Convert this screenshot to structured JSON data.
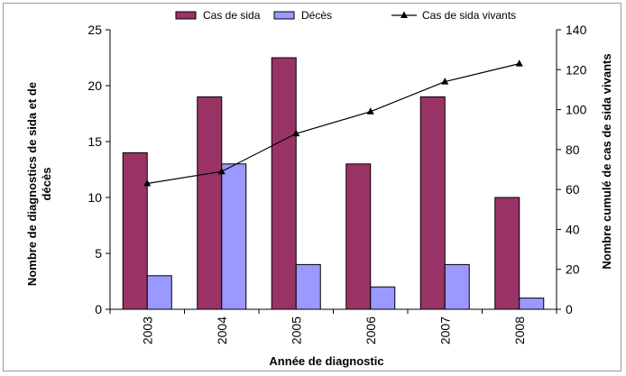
{
  "chart_data": {
    "type": "bar",
    "categories": [
      "2003",
      "2004",
      "2005",
      "2006",
      "2007",
      "2008"
    ],
    "series": [
      {
        "name": "Cas de sida",
        "type": "bar",
        "axis": "left",
        "color": "#993366",
        "values": [
          14,
          19,
          22.5,
          13,
          19,
          10
        ]
      },
      {
        "name": "Décès",
        "type": "bar",
        "axis": "left",
        "color": "#9999ff",
        "values": [
          3,
          13,
          4,
          2,
          4,
          1
        ]
      },
      {
        "name": "Cas de sida vivants",
        "type": "line",
        "axis": "right",
        "color": "#000000",
        "marker": "triangle",
        "values": [
          63,
          69,
          88,
          99,
          114,
          123
        ]
      }
    ],
    "title": "",
    "xlabel": "Année de diagnostic",
    "ylabel": "Nombre de diagnostics de sida et de décès",
    "ylabel_lines": [
      "Nombre de diagnostics de sida et de",
      "décès"
    ],
    "y2label": "Nombre cumulé de cas de sida vivants",
    "ylim": [
      0,
      25
    ],
    "y2lim": [
      0,
      140
    ],
    "yticks": [
      "0",
      "5",
      "10",
      "15",
      "20",
      "25"
    ],
    "y2ticks": [
      "0",
      "20",
      "40",
      "60",
      "80",
      "100",
      "120",
      "140"
    ],
    "grid": false,
    "legend_position": "top"
  }
}
